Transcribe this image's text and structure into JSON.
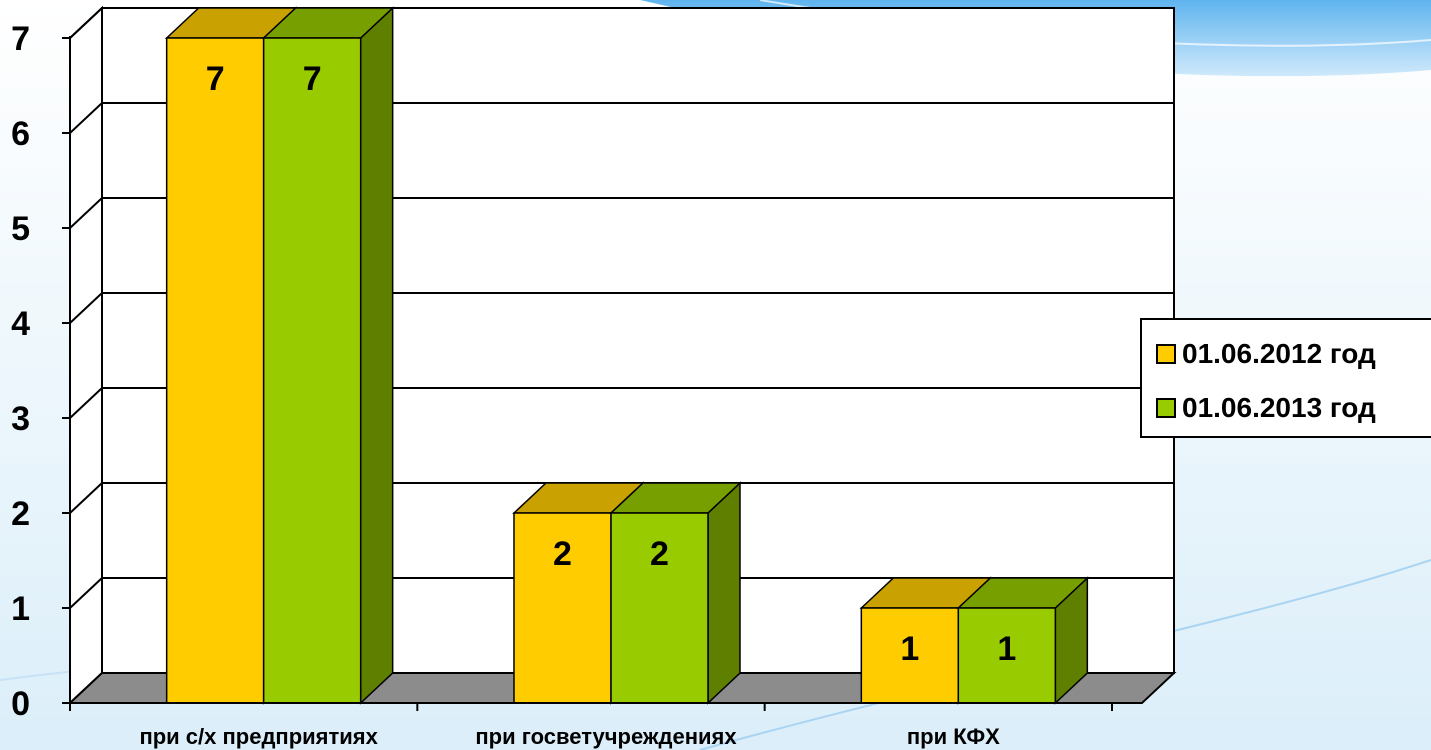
{
  "chart_data": {
    "type": "bar",
    "categories": [
      "при с/х предприятиях",
      "при госветучреждениях",
      "при КФХ"
    ],
    "series": [
      {
        "name": "01.06.2012 год",
        "values": [
          7,
          2,
          1
        ],
        "color": "#ffcc00",
        "top_color": "#c9a100",
        "side_color": "#a38400"
      },
      {
        "name": "01.06.2013 год",
        "values": [
          7,
          2,
          1
        ],
        "color": "#99cc00",
        "top_color": "#789f00",
        "side_color": "#5f7f00"
      }
    ],
    "yticks": [
      "0",
      "1",
      "2",
      "3",
      "4",
      "5",
      "6",
      "7"
    ],
    "ylim": [
      0,
      7
    ],
    "grid": true,
    "legend_position": "right",
    "data_labels": true,
    "three_d": true
  }
}
